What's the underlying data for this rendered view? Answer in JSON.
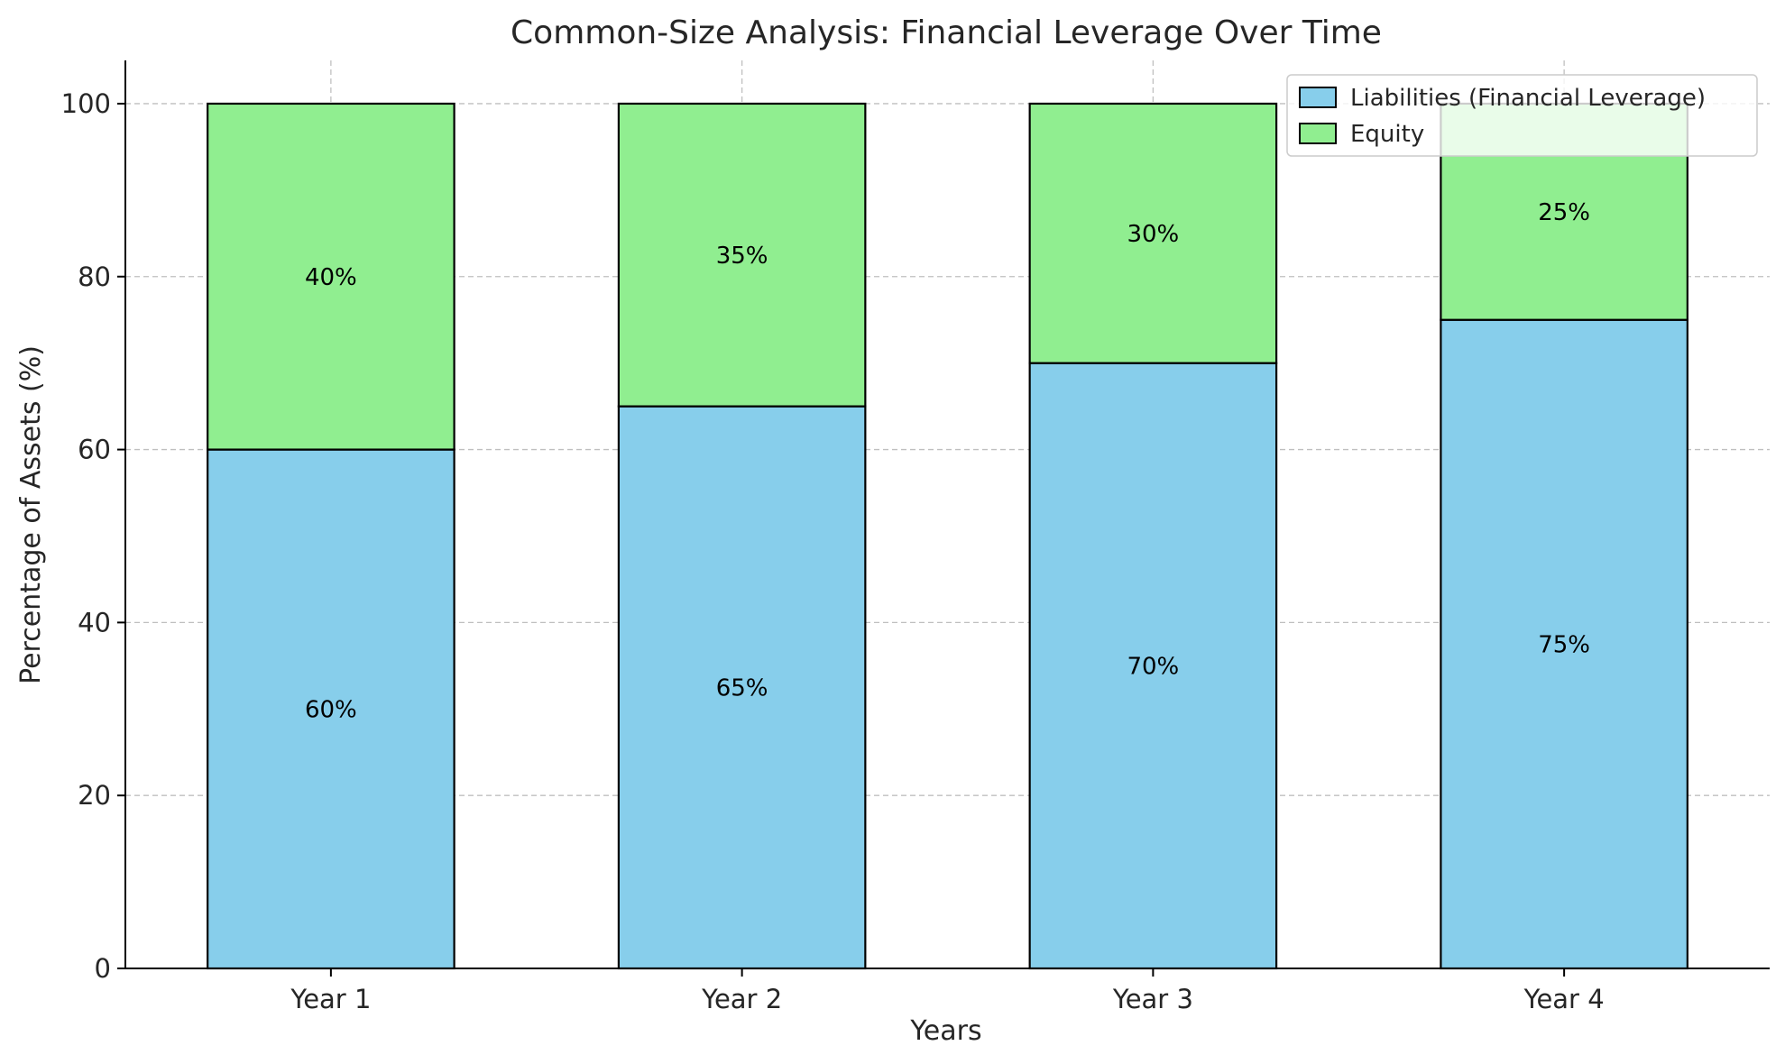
{
  "chart_data": {
    "type": "bar",
    "stacked": true,
    "title": "Common-Size Analysis: Financial Leverage Over Time",
    "xlabel": "Years",
    "ylabel": "Percentage of Assets (%)",
    "categories": [
      "Year 1",
      "Year 2",
      "Year 3",
      "Year 4"
    ],
    "series": [
      {
        "name": "Liabilities (Financial Leverage)",
        "values": [
          60,
          65,
          70,
          75
        ],
        "labels": [
          "60%",
          "65%",
          "70%",
          "75%"
        ],
        "color": "#87ceeb"
      },
      {
        "name": "Equity",
        "values": [
          40,
          35,
          30,
          25
        ],
        "labels": [
          "40%",
          "35%",
          "30%",
          "25%"
        ],
        "color": "#90ee90"
      }
    ],
    "ylim": [
      0,
      105
    ],
    "yticks": [
      0,
      20,
      40,
      60,
      80,
      100
    ],
    "grid": true,
    "legend_position": "top-right"
  }
}
